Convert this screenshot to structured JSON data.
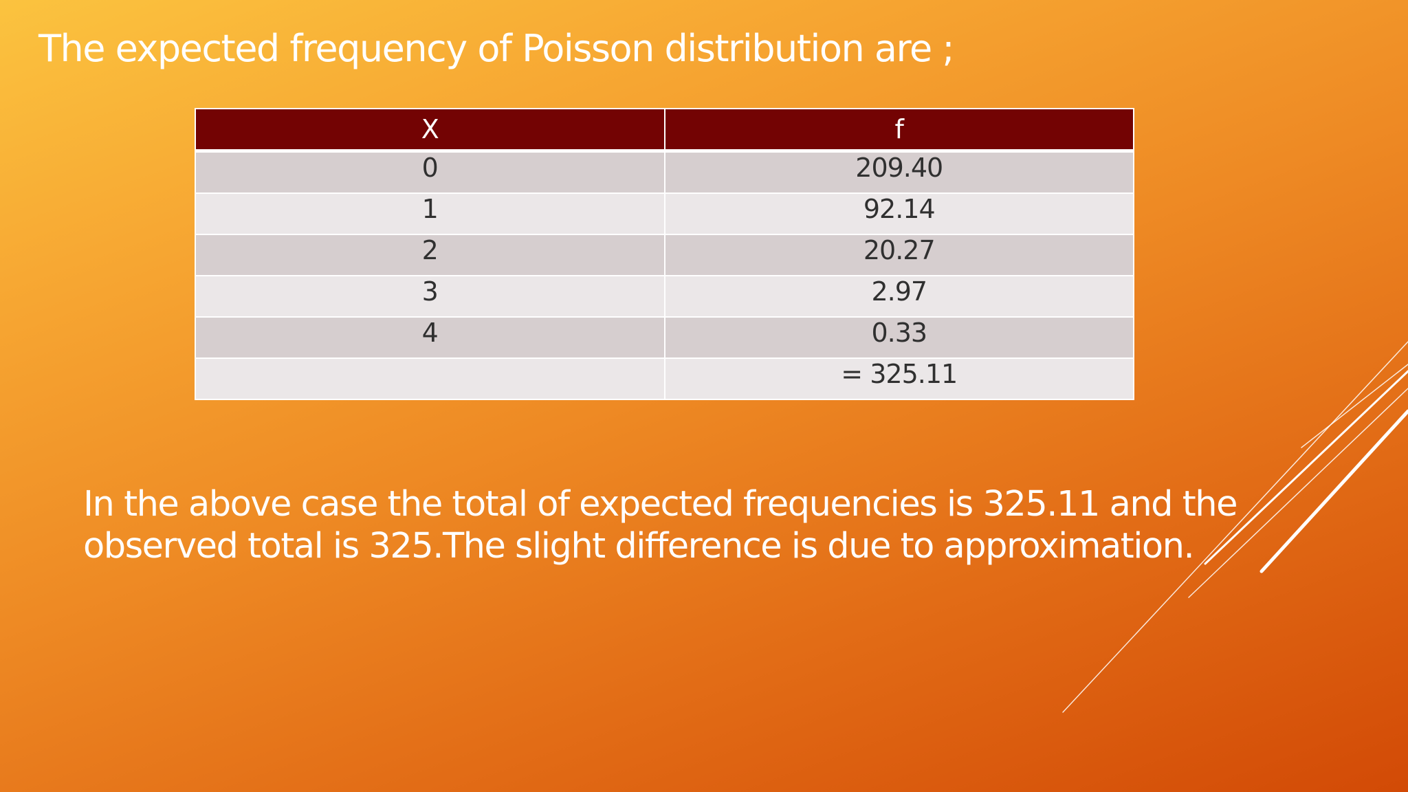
{
  "slide": {
    "title": "The expected frequency of Poisson distribution are ;",
    "note": "In the above case the total of expected frequencies is 325.11 and the observed total is 325.The slight difference is due to approximation."
  },
  "table": {
    "headers": [
      "X",
      "f"
    ],
    "rows": [
      [
        "0",
        "209.40"
      ],
      [
        "1",
        "92.14"
      ],
      [
        "2",
        "20.27"
      ],
      [
        "3",
        "2.97"
      ],
      [
        "4",
        "0.33"
      ],
      [
        "",
        "= 325.11"
      ]
    ]
  },
  "colors": {
    "header_bg": "#730303",
    "row_dark": "#d6cecf",
    "row_light": "#ebe7e8",
    "background_top": "#fbc33f",
    "background_bottom": "#d24a06"
  }
}
